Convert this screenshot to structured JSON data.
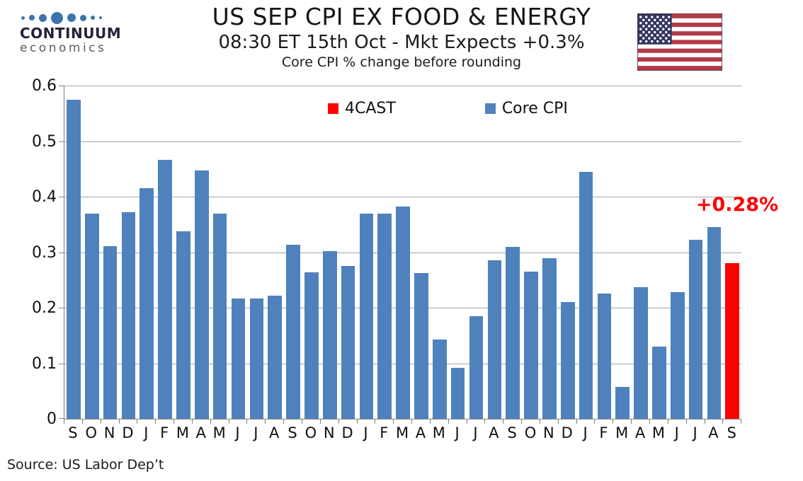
{
  "header": {
    "logo": {
      "brand": "CONTINUUM",
      "sub": "economics"
    },
    "title": "US SEP CPI EX FOOD & ENERGY",
    "subtitle": "08:30 ET 15th Oct - Mkt Expects +0.3%",
    "subtitle2": "Core CPI % change before rounding"
  },
  "legend": [
    {
      "label": "4CAST",
      "color": "#FF0000"
    },
    {
      "label": "Core CPI",
      "color": "#4F81BD"
    }
  ],
  "annotation": {
    "text": "+0.28%",
    "color": "#FF0000"
  },
  "footer": {
    "source": "Source: US Labor Dep’t"
  },
  "chart_data": {
    "type": "bar",
    "title": "US SEP CPI EX FOOD & ENERGY",
    "subtitle": "08:30 ET 15th Oct - Mkt Expects +0.3%",
    "note": "Core CPI % change before rounding",
    "categories": [
      "S",
      "O",
      "N",
      "D",
      "J",
      "F",
      "M",
      "A",
      "M",
      "J",
      "J",
      "A",
      "S",
      "O",
      "N",
      "D",
      "J",
      "F",
      "M",
      "A",
      "M",
      "J",
      "J",
      "A",
      "S",
      "O",
      "N",
      "D",
      "J",
      "F",
      "M",
      "A",
      "M",
      "J",
      "J",
      "A",
      "S"
    ],
    "values": [
      0.575,
      0.369,
      0.311,
      0.372,
      0.415,
      0.466,
      0.337,
      0.447,
      0.369,
      0.216,
      0.216,
      0.222,
      0.313,
      0.264,
      0.302,
      0.275,
      0.369,
      0.369,
      0.382,
      0.263,
      0.143,
      0.092,
      0.185,
      0.285,
      0.31,
      0.265,
      0.289,
      0.21,
      0.445,
      0.226,
      0.057,
      0.237,
      0.13,
      0.228,
      0.322,
      0.345,
      0.28
    ],
    "forecast_index": 36,
    "forecast_value_label": "+0.28%",
    "colors": {
      "core": "#4F81BD",
      "forecast": "#FF0000"
    },
    "ylim": [
      0,
      0.6
    ],
    "yticks": [
      0,
      0.1,
      0.2,
      0.3,
      0.4,
      0.5,
      0.6
    ],
    "ytick_labels": [
      "0",
      "0.1",
      "0.2",
      "0.3",
      "0.4",
      "0.5",
      "0.6"
    ],
    "grid": true,
    "legend_position": "top-center-inside",
    "legend": [
      {
        "label": "4CAST",
        "color": "#FF0000"
      },
      {
        "label": "Core CPI",
        "color": "#4F81BD"
      }
    ],
    "source": "Source: US Labor Dep’t"
  }
}
